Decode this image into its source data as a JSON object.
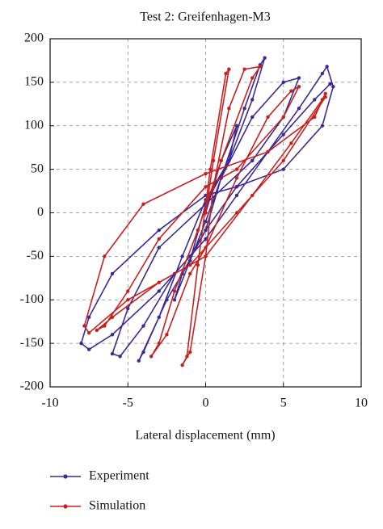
{
  "chart_data": {
    "type": "line",
    "title": "Test 2: Greifenhagen-M3",
    "x_label": "Lateral displacement (mm)",
    "xlim": [
      -10,
      10
    ],
    "xticks": [
      -10,
      -5,
      0,
      5,
      10
    ],
    "ylim": [
      -200,
      200
    ],
    "yticks": [
      -200,
      -150,
      -100,
      -50,
      0,
      50,
      100,
      150,
      200
    ],
    "grid": true,
    "legend": "below",
    "series": [
      {
        "name": "Experiment",
        "color": "#3b2a94",
        "marker": true,
        "x": [
          0,
          1,
          2,
          1.5,
          0,
          -1,
          -2,
          -1.5,
          0,
          1,
          2.5,
          3.5,
          3.8,
          3,
          1.5,
          0,
          -1.5,
          -3,
          -4.3,
          -4,
          -2.5,
          -1,
          0,
          1,
          3,
          5,
          6,
          5,
          3,
          0,
          -3,
          -5,
          -6,
          -5.5,
          -4,
          -2,
          0,
          2,
          4,
          6,
          7.5,
          7.8,
          8.2,
          7.5,
          5,
          2,
          0,
          -3,
          -6,
          -7.5,
          -8,
          -7.5,
          -6,
          -3,
          -1,
          0,
          2,
          5,
          7,
          8
        ],
        "values": [
          0,
          60,
          100,
          60,
          10,
          -55,
          -100,
          -70,
          -20,
          40,
          120,
          170,
          178,
          130,
          60,
          15,
          -50,
          -120,
          -170,
          -160,
          -100,
          -55,
          -10,
          40,
          110,
          150,
          155,
          110,
          60,
          10,
          -40,
          -110,
          -162,
          -165,
          -130,
          -70,
          -30,
          20,
          70,
          120,
          160,
          168,
          145,
          100,
          50,
          30,
          20,
          -20,
          -70,
          -120,
          -150,
          -157,
          -140,
          -90,
          -50,
          -20,
          30,
          90,
          130,
          148
        ]
      },
      {
        "name": "Simulation",
        "color": "#c8201f",
        "marker": true,
        "x": [
          0,
          0.5,
          1.5,
          1.3,
          0.3,
          -0.5,
          -1.2,
          -1.5,
          -1,
          0,
          0.5,
          1.5,
          2.5,
          3.5,
          3,
          1,
          -0.5,
          -2,
          -3,
          -3.5,
          -2.5,
          -1,
          0,
          2,
          4,
          5.5,
          6,
          5,
          2,
          0,
          -3,
          -5,
          -6.5,
          -7,
          -6,
          -3,
          0,
          3,
          5.5,
          7.5,
          7.7,
          7,
          4,
          0,
          -4,
          -6.5,
          -7.8,
          -7.5,
          -5,
          -1,
          2,
          5,
          7.7
        ],
        "values": [
          0,
          60,
          165,
          160,
          50,
          -60,
          -165,
          -175,
          -160,
          -50,
          30,
          120,
          165,
          168,
          155,
          60,
          -20,
          -90,
          -150,
          -165,
          -140,
          -70,
          -40,
          40,
          110,
          140,
          145,
          110,
          50,
          30,
          -30,
          -90,
          -130,
          -135,
          -120,
          -80,
          -50,
          20,
          80,
          130,
          137,
          110,
          70,
          45,
          10,
          -50,
          -130,
          -138,
          -100,
          -60,
          0,
          60,
          133
        ]
      }
    ]
  }
}
